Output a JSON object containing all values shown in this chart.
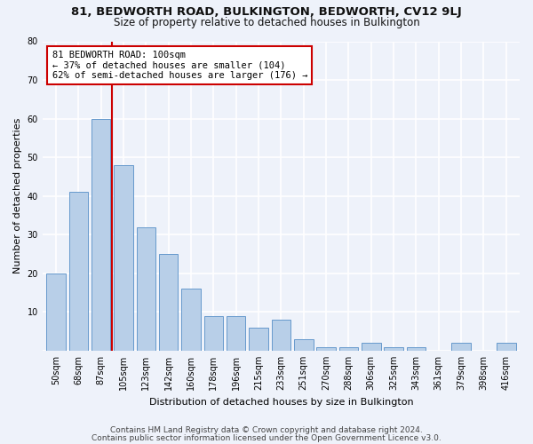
{
  "title1": "81, BEDWORTH ROAD, BULKINGTON, BEDWORTH, CV12 9LJ",
  "title2": "Size of property relative to detached houses in Bulkington",
  "xlabel": "Distribution of detached houses by size in Bulkington",
  "ylabel": "Number of detached properties",
  "categories": [
    "50sqm",
    "68sqm",
    "87sqm",
    "105sqm",
    "123sqm",
    "142sqm",
    "160sqm",
    "178sqm",
    "196sqm",
    "215sqm",
    "233sqm",
    "251sqm",
    "270sqm",
    "288sqm",
    "306sqm",
    "325sqm",
    "343sqm",
    "361sqm",
    "379sqm",
    "398sqm",
    "416sqm"
  ],
  "values": [
    20,
    41,
    60,
    48,
    32,
    25,
    16,
    9,
    9,
    6,
    8,
    3,
    1,
    1,
    2,
    1,
    1,
    0,
    2,
    0,
    2
  ],
  "bar_color": "#b8cfe8",
  "bar_edge_color": "#6699cc",
  "background_color": "#eef2fa",
  "grid_color": "#ffffff",
  "annotation_box_text": "81 BEDWORTH ROAD: 100sqm\n← 37% of detached houses are smaller (104)\n62% of semi-detached houses are larger (176) →",
  "annotation_box_color": "#ffffff",
  "annotation_box_edge_color": "#cc0000",
  "vline_color": "#cc0000",
  "vline_x": 2.5,
  "ylim": [
    0,
    80
  ],
  "yticks": [
    0,
    10,
    20,
    30,
    40,
    50,
    60,
    70,
    80
  ],
  "footer1": "Contains HM Land Registry data © Crown copyright and database right 2024.",
  "footer2": "Contains public sector information licensed under the Open Government Licence v3.0.",
  "title1_fontsize": 9.5,
  "title2_fontsize": 8.5,
  "axis_label_fontsize": 8,
  "tick_fontsize": 7,
  "annotation_fontsize": 7.5,
  "footer_fontsize": 6.5
}
